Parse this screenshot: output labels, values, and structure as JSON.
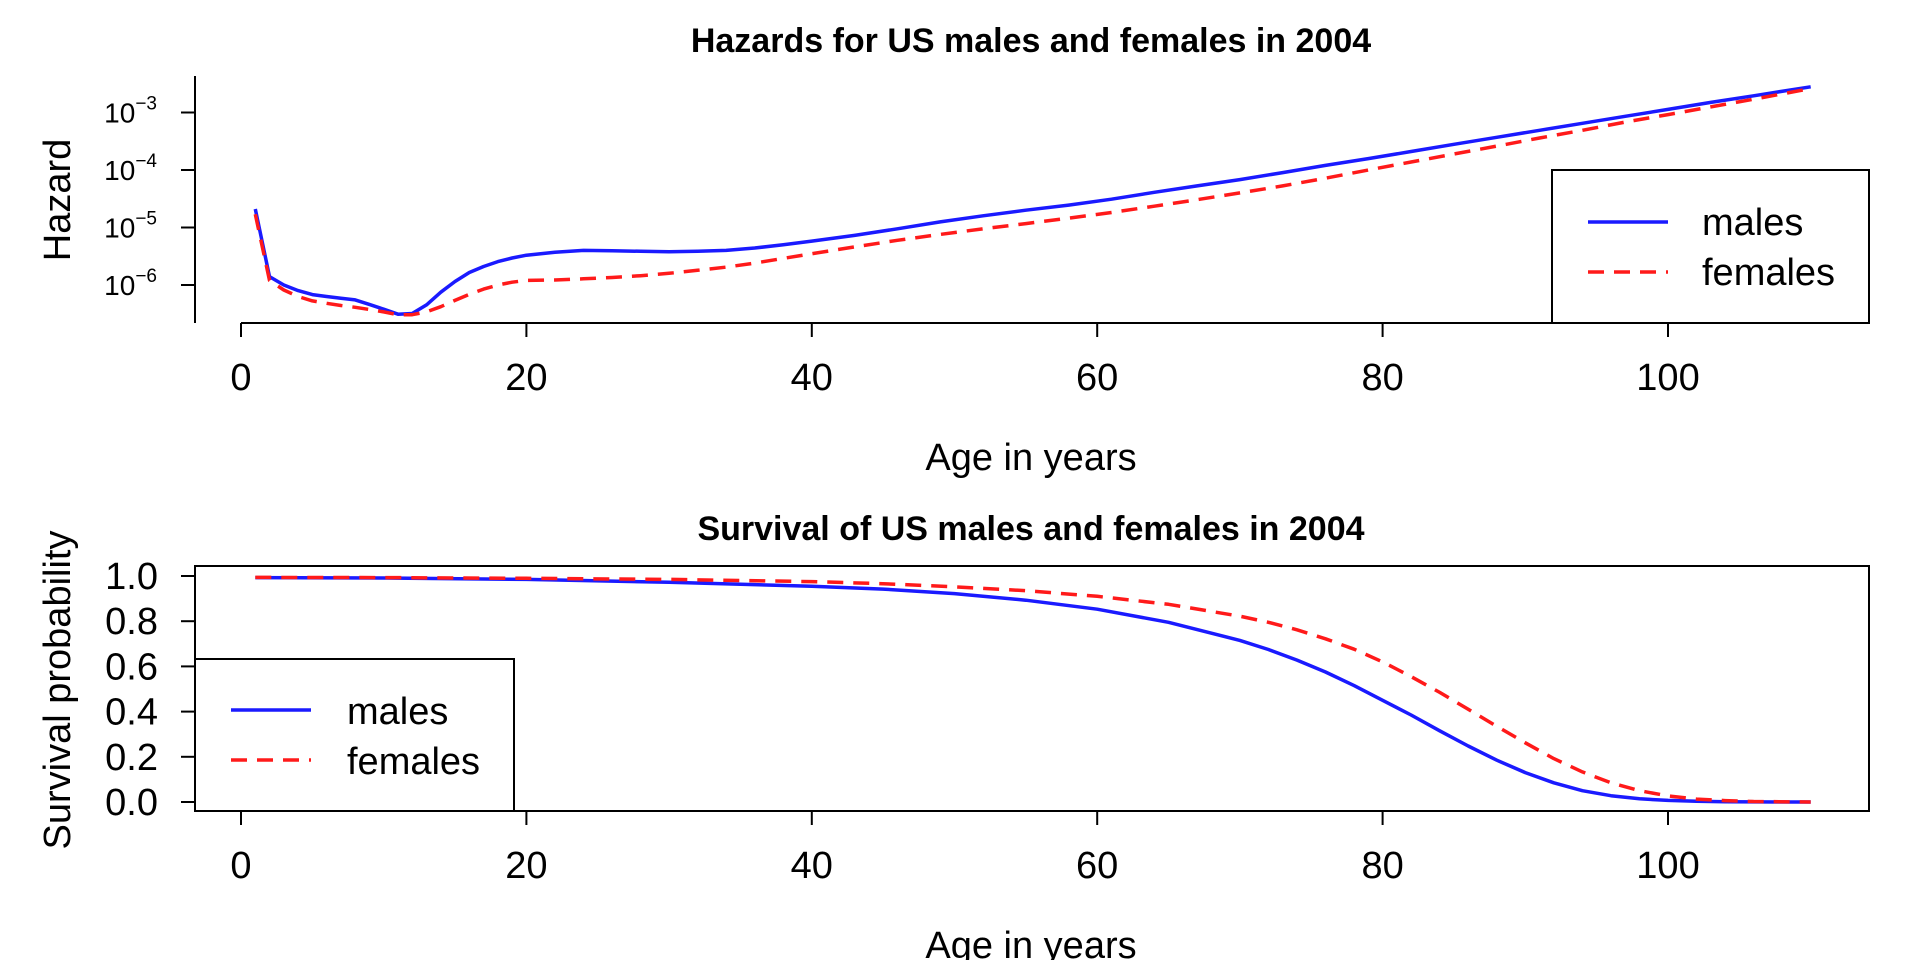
{
  "chart_data": [
    {
      "type": "line",
      "title": "Hazards for US males and females in 2004",
      "xlabel": "Age in years",
      "ylabel": "Hazard",
      "y_scale": "log",
      "xlim": [
        -3,
        114
      ],
      "ylim": [
        2e-07,
        0.0035
      ],
      "x_ticks": [
        "0",
        "20",
        "40",
        "60",
        "80",
        "100"
      ],
      "y_ticks": [
        {
          "base": "10",
          "exp": "−6"
        },
        {
          "base": "10",
          "exp": "−5"
        },
        {
          "base": "10",
          "exp": "−4"
        },
        {
          "base": "10",
          "exp": "−3"
        }
      ],
      "legend": {
        "position": "right",
        "entries": [
          "males",
          "females"
        ]
      },
      "series": [
        {
          "name": "males",
          "color": "#1a1aff",
          "style": "solid",
          "x": [
            1,
            2,
            3,
            4,
            5,
            6,
            7,
            8,
            9,
            10,
            11,
            12,
            13,
            14,
            15,
            16,
            17,
            18,
            19,
            20,
            22,
            24,
            26,
            28,
            30,
            32,
            34,
            36,
            38,
            40,
            43,
            46,
            49,
            52,
            55,
            58,
            61,
            64,
            67,
            70,
            73,
            76,
            79,
            82,
            85,
            88,
            91,
            94,
            97,
            100,
            103,
            106,
            110
          ],
          "y": [
            2.1e-05,
            1.4e-06,
            1e-06,
            8e-07,
            6.8e-07,
            6.3e-07,
            5.9e-07,
            5.5e-07,
            4.6e-07,
            3.8e-07,
            3.1e-07,
            3.2e-07,
            4.5e-07,
            7.5e-07,
            1.15e-06,
            1.65e-06,
            2.1e-06,
            2.55e-06,
            2.95e-06,
            3.3e-06,
            3.7e-06,
            4e-06,
            3.95e-06,
            3.85e-06,
            3.8e-06,
            3.85e-06,
            4e-06,
            4.4e-06,
            5e-06,
            5.8e-06,
            7.3e-06,
            9.5e-06,
            1.25e-05,
            1.6e-05,
            2e-05,
            2.45e-05,
            3.1e-05,
            4.1e-05,
            5.3e-05,
            6.8e-05,
            9e-05,
            0.00012,
            0.000158,
            0.00021,
            0.00028,
            0.00037,
            0.00049,
            0.00065,
            0.00086,
            0.00113,
            0.0015,
            0.00195,
            0.0028
          ]
        },
        {
          "name": "females",
          "color": "#ff1a1a",
          "style": "dashed",
          "x": [
            1,
            2,
            3,
            4,
            5,
            6,
            7,
            8,
            9,
            10,
            11,
            12,
            13,
            14,
            15,
            16,
            17,
            18,
            19,
            20,
            22,
            24,
            26,
            28,
            30,
            32,
            34,
            36,
            38,
            40,
            43,
            46,
            49,
            52,
            55,
            58,
            61,
            64,
            67,
            70,
            73,
            76,
            79,
            82,
            85,
            88,
            91,
            94,
            97,
            100,
            103,
            106,
            110
          ],
          "y": [
            1.7e-05,
            1.2e-06,
            8.2e-07,
            6.3e-07,
            5.3e-07,
            4.8e-07,
            4.4e-07,
            4.1e-07,
            3.75e-07,
            3.4e-07,
            3.05e-07,
            3.05e-07,
            3.4e-07,
            4.2e-07,
            5.4e-07,
            6.9e-07,
            8.5e-07,
            1e-06,
            1.12e-06,
            1.2e-06,
            1.22e-06,
            1.28e-06,
            1.35e-06,
            1.45e-06,
            1.6e-06,
            1.8e-06,
            2.05e-06,
            2.4e-06,
            2.9e-06,
            3.5e-06,
            4.6e-06,
            6e-06,
            7.6e-06,
            9.5e-06,
            1.17e-05,
            1.45e-05,
            1.82e-05,
            2.35e-05,
            3.05e-05,
            4e-05,
            5.3e-05,
            7.2e-05,
            0.0001,
            0.000138,
            0.00019,
            0.00026,
            0.00036,
            0.00049,
            0.00068,
            0.00092,
            0.00125,
            0.0017,
            0.0026
          ]
        }
      ]
    },
    {
      "type": "line",
      "title": "Survival of US males and females in 2004",
      "xlabel": "Age in years",
      "ylabel": "Survival probability",
      "xlim": [
        -3,
        114
      ],
      "ylim": [
        -0.04,
        1.04
      ],
      "x_ticks": [
        "0",
        "20",
        "40",
        "60",
        "80",
        "100"
      ],
      "y_ticks": [
        "0.0",
        "0.2",
        "0.4",
        "0.6",
        "0.8",
        "1.0"
      ],
      "legend": {
        "position": "bottom-left",
        "entries": [
          "males",
          "females"
        ]
      },
      "series": [
        {
          "name": "males",
          "color": "#1a1aff",
          "style": "solid",
          "x": [
            1,
            10,
            20,
            30,
            40,
            45,
            50,
            55,
            60,
            65,
            70,
            72,
            74,
            76,
            78,
            80,
            82,
            84,
            86,
            88,
            90,
            92,
            94,
            96,
            98,
            100,
            102,
            104,
            106,
            110
          ],
          "y": [
            0.993,
            0.991,
            0.985,
            0.972,
            0.955,
            0.942,
            0.922,
            0.893,
            0.853,
            0.795,
            0.715,
            0.675,
            0.628,
            0.575,
            0.515,
            0.45,
            0.385,
            0.315,
            0.248,
            0.185,
            0.13,
            0.085,
            0.05,
            0.028,
            0.014,
            0.007,
            0.003,
            0.001,
            0.0005,
            0.0
          ]
        },
        {
          "name": "females",
          "color": "#ff1a1a",
          "style": "dashed",
          "x": [
            1,
            10,
            20,
            30,
            40,
            45,
            50,
            55,
            60,
            65,
            70,
            72,
            74,
            76,
            78,
            80,
            82,
            84,
            86,
            88,
            90,
            92,
            94,
            96,
            98,
            100,
            102,
            104,
            106,
            110
          ],
          "y": [
            0.994,
            0.993,
            0.99,
            0.985,
            0.975,
            0.966,
            0.952,
            0.935,
            0.91,
            0.875,
            0.822,
            0.795,
            0.762,
            0.722,
            0.676,
            0.62,
            0.555,
            0.485,
            0.41,
            0.335,
            0.262,
            0.192,
            0.133,
            0.085,
            0.05,
            0.027,
            0.013,
            0.006,
            0.002,
            0.0
          ]
        }
      ]
    }
  ]
}
